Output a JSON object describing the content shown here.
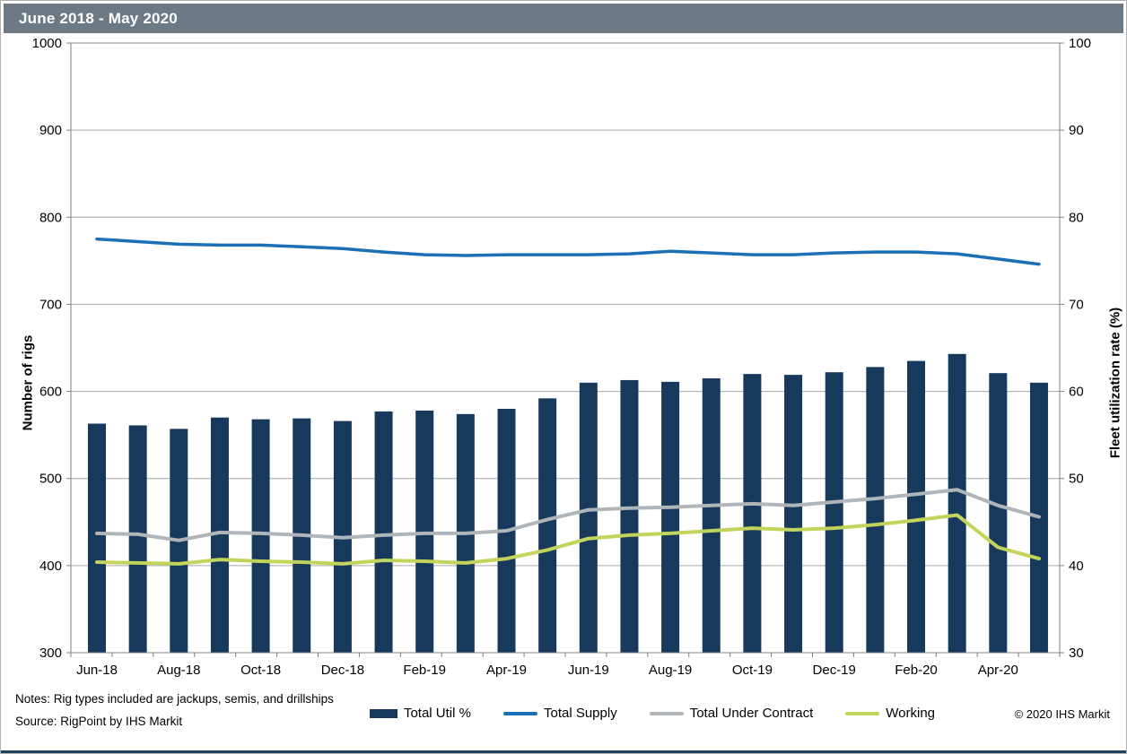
{
  "header": {
    "title": "June 2018 - May 2020",
    "bg_color": "#6d7a86"
  },
  "notes": {
    "line1": "Notes: Rig types included are jackups, semis, and drillships",
    "line2": "Source: RigPoint by IHS Markit"
  },
  "copyright": "© 2020 IHS Markit",
  "colors": {
    "header_bg": "#6d7a86",
    "bar": "#17395c",
    "supply_line": "#1b6fb5",
    "contract_line": "#b0b5ba",
    "working_line": "#c3d45c",
    "gridline": "#a6a6a6",
    "axis": "#808080",
    "text": "#000000"
  },
  "chart_data": {
    "type": "bar",
    "subtype": "combo-bar-line",
    "title": "June 2018 - May 2020",
    "grid": true,
    "legend_position": "bottom-center",
    "categories": [
      "Jun-18",
      "Jul-18",
      "Aug-18",
      "Sep-18",
      "Oct-18",
      "Nov-18",
      "Dec-18",
      "Jan-19",
      "Feb-19",
      "Mar-19",
      "Apr-19",
      "May-19",
      "Jun-19",
      "Jul-19",
      "Aug-19",
      "Sep-19",
      "Oct-19",
      "Nov-19",
      "Dec-19",
      "Jan-20",
      "Feb-20",
      "Mar-20",
      "Apr-20",
      "May-20"
    ],
    "x_tick_labels": [
      "Jun-18",
      "Aug-18",
      "Oct-18",
      "Dec-18",
      "Feb-19",
      "Apr-19",
      "Jun-19",
      "Aug-19",
      "Oct-19",
      "Dec-19",
      "Feb-20",
      "Apr-20"
    ],
    "left_axis": {
      "label": "Number of rigs",
      "min": 300,
      "max": 1000,
      "step": 100
    },
    "right_axis": {
      "label": "Fleet utilization rate (%)",
      "min": 30,
      "max": 100,
      "step": 10
    },
    "series": [
      {
        "name": "Total Util %",
        "type": "bar",
        "axis": "right",
        "color": "#17395c",
        "values": [
          56.3,
          56.1,
          55.7,
          57.0,
          56.8,
          56.9,
          56.6,
          57.7,
          57.8,
          57.4,
          58.0,
          59.2,
          61.0,
          61.3,
          61.1,
          61.5,
          62.0,
          61.9,
          62.2,
          62.8,
          63.5,
          64.3,
          62.1,
          61.0
        ]
      },
      {
        "name": "Total Supply",
        "type": "line",
        "axis": "left",
        "color": "#1b6fb5",
        "values": [
          775,
          772,
          769,
          768,
          768,
          766,
          764,
          760,
          757,
          756,
          757,
          757,
          757,
          758,
          761,
          759,
          757,
          757,
          759,
          760,
          760,
          758,
          752,
          746
        ]
      },
      {
        "name": "Total Under Contract",
        "type": "line",
        "axis": "left",
        "color": "#b0b5ba",
        "values": [
          437,
          436,
          429,
          438,
          437,
          435,
          432,
          435,
          437,
          437,
          440,
          453,
          464,
          466,
          467,
          469,
          471,
          469,
          473,
          477,
          482,
          487,
          469,
          456
        ]
      },
      {
        "name": "Working",
        "type": "line",
        "axis": "left",
        "color": "#c3d45c",
        "values": [
          404,
          403,
          402,
          407,
          405,
          404,
          402,
          406,
          405,
          403,
          408,
          418,
          431,
          435,
          437,
          440,
          443,
          441,
          443,
          447,
          452,
          458,
          421,
          408
        ]
      }
    ]
  }
}
